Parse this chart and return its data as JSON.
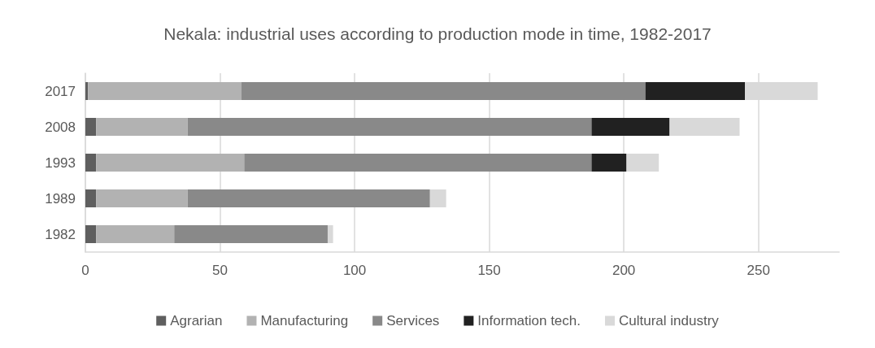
{
  "chart_data": {
    "type": "bar",
    "orientation": "horizontal",
    "stacked": true,
    "title": "Nekala: industrial uses according to production mode in time, 1982-2017",
    "categories": [
      "2017",
      "2008",
      "1993",
      "1989",
      "1982"
    ],
    "series": [
      {
        "name": "Agrarian",
        "color": "#5f5f5f",
        "values": [
          1,
          4,
          4,
          4,
          4
        ]
      },
      {
        "name": "Manufacturing",
        "color": "#b2b2b2",
        "values": [
          57,
          34,
          55,
          34,
          29
        ]
      },
      {
        "name": "Services",
        "color": "#898989",
        "values": [
          150,
          150,
          129,
          90,
          57
        ]
      },
      {
        "name": "Information tech.",
        "color": "#212121",
        "values": [
          37,
          29,
          13,
          0,
          0
        ]
      },
      {
        "name": "Cultural industry",
        "color": "#d9d9d9",
        "values": [
          27,
          26,
          12,
          6,
          2
        ]
      }
    ],
    "xlim": [
      0,
      280
    ],
    "xticks": [
      0,
      50,
      100,
      150,
      200,
      250
    ],
    "grid": "x",
    "legend": "bottom"
  }
}
